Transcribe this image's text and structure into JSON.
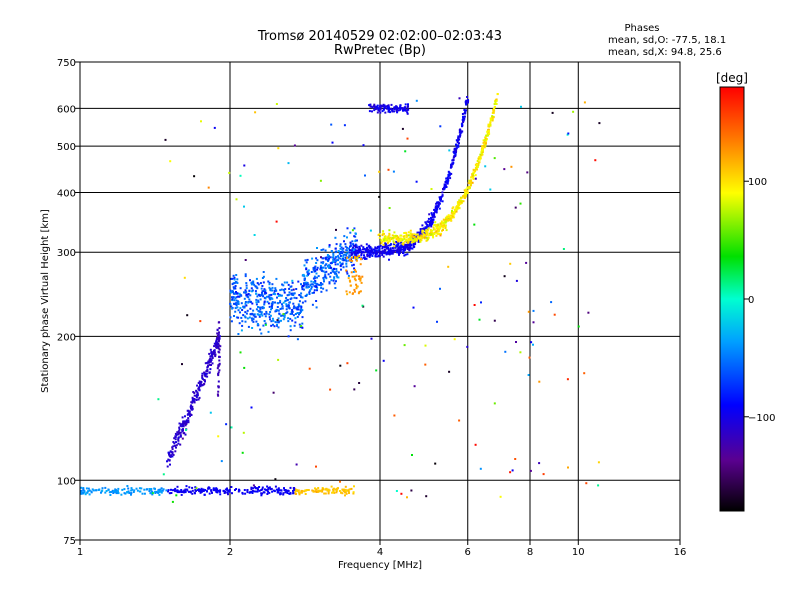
{
  "chart_data": {
    "type": "scatter",
    "title": "Tromsø 20140529 02:02:00–02:03:43",
    "subtitle": "RwPretec (Bp)",
    "xlabel": "Frequency [MHz]",
    "ylabel": "Stationary phase Virtual Height [km]",
    "xscale": "log2",
    "yscale": "log",
    "xlim": [
      1,
      16
    ],
    "ylim": [
      75,
      750
    ],
    "xticks": [
      1,
      2,
      4,
      6,
      8,
      10,
      16
    ],
    "xtick_labels": [
      "1",
      "2",
      "4",
      "6",
      "8",
      "10",
      "16"
    ],
    "yticks": [
      75,
      100,
      200,
      300,
      400,
      500,
      600,
      750
    ],
    "ytick_labels": [
      "75",
      "100",
      "200",
      "300",
      "400",
      "500",
      "600",
      "750"
    ],
    "grid": true,
    "stats": {
      "title": "Phases",
      "line_o": "mean, sd,O: -77.5, 18.1",
      "line_x": "mean, sd,X:  94.8, 25.6"
    },
    "colorbar": {
      "label": "[deg]",
      "range": [
        -180,
        180
      ],
      "ticks": [
        100,
        0,
        -100
      ],
      "tick_labels": [
        "100",
        "0",
        "−100"
      ]
    },
    "series": [
      {
        "name": "E-layer trace",
        "f_range": [
          1.0,
          3.5
        ],
        "h": 95,
        "phase": [
          -20,
          120
        ]
      },
      {
        "name": "F1 trace low",
        "f_range": [
          1.5,
          1.9
        ],
        "h_range": [
          110,
          200
        ],
        "phase": -120
      },
      {
        "name": "F1 cusp",
        "f_range": [
          2.0,
          3.6
        ],
        "h_range": [
          210,
          350
        ],
        "phase": -90
      },
      {
        "name": "F2 O-mode",
        "f_range": [
          3.5,
          6.0
        ],
        "h_range": [
          300,
          650
        ],
        "phase": -100
      },
      {
        "name": "F2 X-mode",
        "f_range": [
          4.0,
          6.9
        ],
        "h_range": [
          320,
          640
        ],
        "phase": 100
      },
      {
        "name": "Spread-F upper",
        "f_range": [
          3.8,
          4.6
        ],
        "h_range": [
          590,
          650
        ],
        "phase": -110
      }
    ]
  }
}
